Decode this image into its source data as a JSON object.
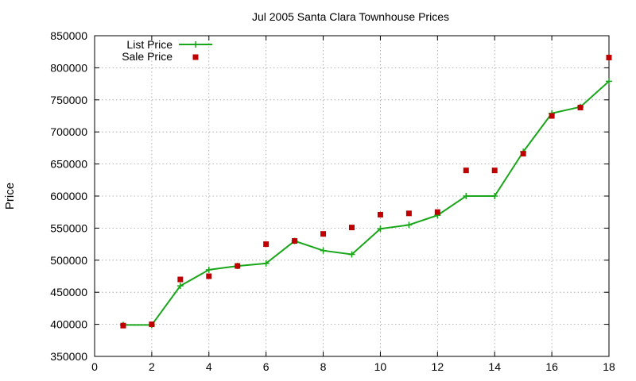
{
  "chart_data": {
    "type": "line",
    "title": "Jul 2005 Santa Clara Townhouse Prices",
    "xlabel": "",
    "ylabel": "Price",
    "xlim": [
      0,
      18
    ],
    "ylim": [
      350000,
      850000
    ],
    "x_ticks": [
      0,
      2,
      4,
      6,
      8,
      10,
      12,
      14,
      16,
      18
    ],
    "y_ticks": [
      350000,
      400000,
      450000,
      500000,
      550000,
      600000,
      650000,
      700000,
      750000,
      800000,
      850000
    ],
    "grid": true,
    "legend_position": "top-left",
    "series": [
      {
        "name": "List Price",
        "style": "line-with-plus-markers",
        "color": "#1aa61a",
        "x": [
          1,
          2,
          3,
          4,
          5,
          6,
          7,
          8,
          9,
          10,
          11,
          12,
          13,
          14,
          15,
          16,
          17,
          18
        ],
        "y": [
          399000,
          399000,
          460000,
          485000,
          491000,
          495000,
          530000,
          515000,
          509000,
          549000,
          555000,
          570000,
          600000,
          600000,
          669000,
          729000,
          739000,
          779000
        ]
      },
      {
        "name": "Sale Price",
        "style": "square-markers",
        "color": "#c00000",
        "x": [
          1,
          2,
          3,
          4,
          5,
          6,
          7,
          8,
          9,
          10,
          11,
          12,
          13,
          14,
          15,
          16,
          17,
          18
        ],
        "y": [
          398000,
          400000,
          470000,
          475000,
          491000,
          525000,
          530000,
          541000,
          551000,
          571000,
          573000,
          575000,
          640000,
          640000,
          666000,
          725000,
          738000,
          816000
        ]
      }
    ]
  }
}
